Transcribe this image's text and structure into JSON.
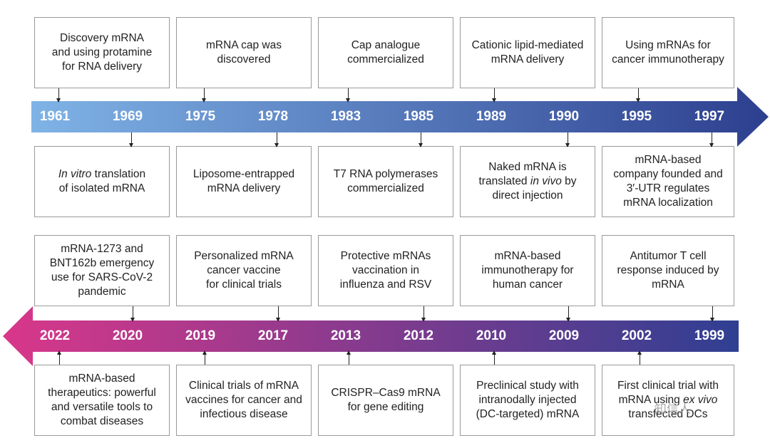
{
  "colors": {
    "arrow1_start": "#7fb3e6",
    "arrow1_end": "#2d3f8f",
    "arrow2_start": "#d9378a",
    "arrow2_end": "#2f3f92"
  },
  "timeline1": {
    "years": [
      "1961",
      "1969",
      "1975",
      "1978",
      "1983",
      "1985",
      "1989",
      "1990",
      "1995",
      "1997"
    ],
    "top": [
      "Discovery  mRNA\nand using protamine\nfor RNA delivery",
      "mRNA cap was\ndiscovered",
      "Cap analogue\ncommercialized",
      "Cationic lipid-mediated\nmRNA delivery",
      "Using mRNAs for\ncancer immunotherapy"
    ],
    "bottom": [
      "In vitro translation\nof isolated mRNA",
      "Liposome-entrapped\nmRNA delivery",
      "T7 RNA polymerases\ncommercialized",
      "Naked mRNA is\ntranslated in vivo by\ndirect injection",
      "mRNA-based\ncompany founded and\n3′-UTR regulates\nmRNA localization"
    ]
  },
  "timeline2": {
    "years": [
      "2022",
      "2020",
      "2019",
      "2017",
      "2013",
      "2012",
      "2010",
      "2009",
      "2002",
      "1999"
    ],
    "top": [
      "mRNA-1273 and\nBNT162b emergency\nuse for SARS-CoV-2\npandemic",
      "Personalized mRNA\ncancer vaccine\nfor clinical trials",
      "Protective mRNAs\nvaccination in\ninfluenza and RSV",
      "mRNA-based\nimmunotherapy for\nhuman cancer",
      "Antitumor T cell\nresponse induced by\nmRNA"
    ],
    "bottom": [
      "mRNA-based\ntherapeutics: powerful\nand versatile tools to\ncombat diseases",
      "Clinical trials of mRNA\nvaccines for cancer and\ninfectious disease",
      "CRISPR–Cas9 mRNA\nfor gene editing",
      "Preclinical study with\nintranodally injected\n(DC-targeted) mRNA",
      "First clinical trial with\nmRNA using ex vivo\ntransfected DCs"
    ]
  },
  "watermark": "知信人"
}
